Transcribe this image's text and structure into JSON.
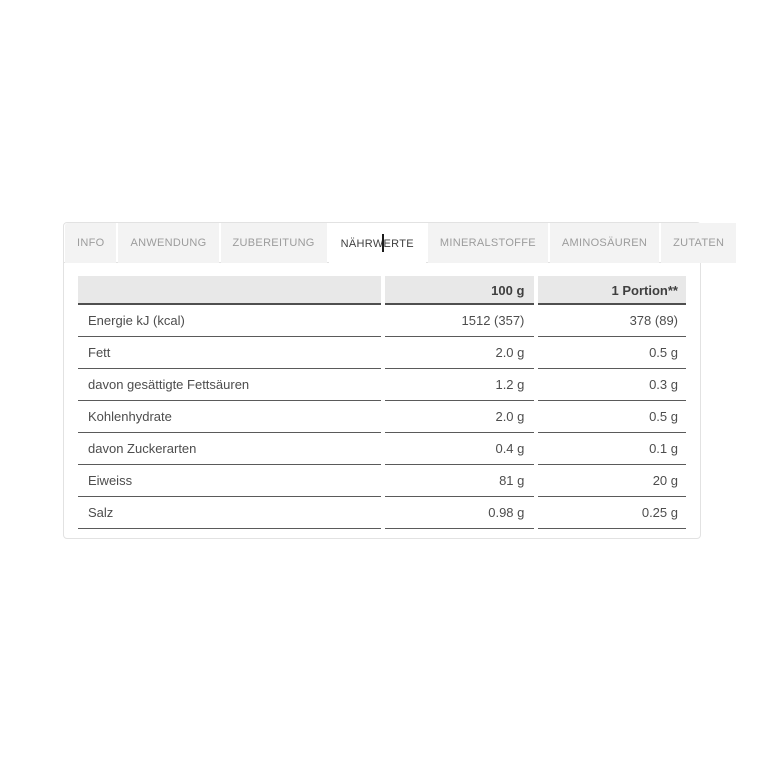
{
  "tabs": [
    {
      "label": "INFO"
    },
    {
      "label": "ANWENDUNG"
    },
    {
      "label": "ZUBEREITUNG"
    },
    {
      "label": "NÄHRWERTE"
    },
    {
      "label": "MINERALSTOFFE"
    },
    {
      "label": "AMINOSÄUREN"
    },
    {
      "label": "ZUTATEN"
    }
  ],
  "active_tab": "NÄHRWERTE",
  "nutrition_table": {
    "col_headers": [
      "",
      "100 g",
      "1 Portion**"
    ],
    "rows": [
      {
        "label": "Energie kJ (kcal)",
        "per_100g": "1512 (357)",
        "per_portion": "378 (89)"
      },
      {
        "label": "Fett",
        "per_100g": "2.0 g",
        "per_portion": "0.5 g"
      },
      {
        "label": "davon gesättigte Fettsäuren",
        "per_100g": "1.2 g",
        "per_portion": "0.3 g"
      },
      {
        "label": "Kohlenhydrate",
        "per_100g": "2.0 g",
        "per_portion": "0.5 g"
      },
      {
        "label": "davon Zuckerarten",
        "per_100g": "0.4 g",
        "per_portion": "0.1 g"
      },
      {
        "label": "Eiweiss",
        "per_100g": "81 g",
        "per_portion": "20 g"
      },
      {
        "label": "Salz",
        "per_100g": "0.98 g",
        "per_portion": "0.25 g"
      }
    ]
  },
  "colors": {
    "tab_background": "#f3f3f3",
    "tab_text": "#9c9c9c",
    "active_tab_text": "#3f3f3f",
    "panel_border": "#e2e2e2",
    "header_cell_background": "#e8e8e8",
    "cell_border": "#5a5a5a",
    "body_text": "#4d4d4d"
  }
}
